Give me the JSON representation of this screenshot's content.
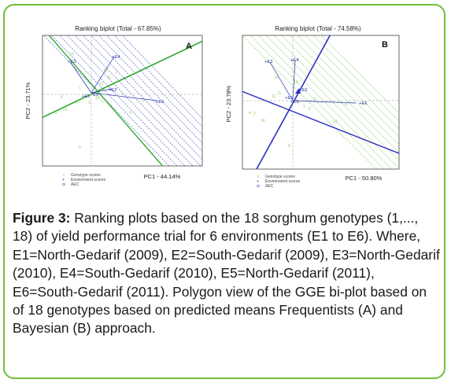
{
  "figure": {
    "label": "Figure 3:",
    "caption": "Ranking plots based on the 18 sorghum genotypes (1,..., 18) of yield performance trial for 6 environments (E1 to E6). Where, E1=North-Gedarif (2009), E2=South-Gedarif (2009), E3=North-Gedarif (2010), E4=South-Gedarif (2010), E5=North-Gedarif (2011), E6=South-Gedarif (2011). Polygon view of the GGE bi-plot based on of 18 genotypes based on predicted means Frequentists (A) and Bayesian (B) approach."
  },
  "colors": {
    "border": "#6fbf3a",
    "genotype": "#8fd46a",
    "environment": "#1f2fa8",
    "aec_a": "#2faa2f",
    "aec_b": "#2b2bc8"
  },
  "panels": [
    {
      "letter": "A",
      "title": "Ranking biplot (Total - 67.85%)",
      "xlabel": "PC1 - 44.14%",
      "ylabel": "PC2 - 23.71%",
      "legend": [
        "Genotype scores",
        "Environment scores",
        "AEC"
      ],
      "environments": [
        "+E4",
        "+E3",
        "+E2",
        "E5",
        "+E1",
        "+E6"
      ],
      "genotypes": [
        "16",
        "13",
        "11",
        "2",
        "12",
        "1",
        "8",
        "14",
        "15",
        "4",
        "3",
        "17",
        "18",
        "5",
        "7",
        "6",
        "9"
      ]
    },
    {
      "letter": "B",
      "title": "Ranking biplot (Total - 74.58%)",
      "xlabel": "PC1 - 50.80%",
      "ylabel": "PC2 - 23.78%",
      "legend": [
        "Genotype scores",
        "Environment scores",
        "AEC"
      ],
      "environments": [
        "+E3",
        "+E4",
        "+E2",
        "+E5",
        "+E1",
        "+E6"
      ],
      "genotypes": [
        "16",
        "11",
        "13",
        "12",
        "17",
        "15",
        "4",
        "2",
        "18",
        "14",
        "3",
        "7",
        "1",
        "8",
        "9"
      ]
    }
  ]
}
